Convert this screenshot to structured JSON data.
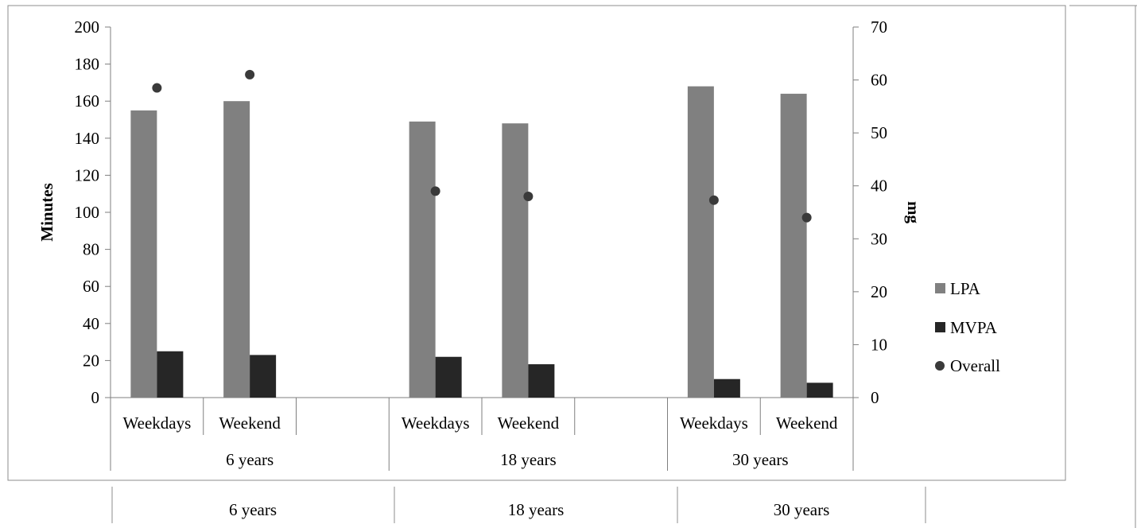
{
  "chart_data": {
    "type": "bar",
    "groups": [
      "6 years",
      "18 years",
      "30 years"
    ],
    "categories": [
      "Weekdays",
      "Weekend",
      "Weekdays",
      "Weekend",
      "Weekdays",
      "Weekend"
    ],
    "category_group": [
      0,
      0,
      1,
      1,
      2,
      2
    ],
    "series": [
      {
        "name": "LPA",
        "kind": "bar",
        "axis": "left",
        "color": "#808080",
        "values": [
          155,
          160,
          149,
          148,
          168,
          164
        ]
      },
      {
        "name": "MVPA",
        "kind": "bar",
        "axis": "left",
        "color": "#262626",
        "values": [
          25,
          23,
          22,
          18,
          10,
          8
        ]
      },
      {
        "name": "Overall",
        "kind": "scatter",
        "axis": "right",
        "color": "#3a3a3a",
        "values": [
          58.5,
          61,
          39,
          38,
          37.3,
          34
        ]
      }
    ],
    "ylabel": "Minutes",
    "y2label": "mg",
    "ylim": [
      0,
      200
    ],
    "y2lim": [
      0,
      70
    ],
    "yticks": [
      0,
      20,
      40,
      60,
      80,
      100,
      120,
      140,
      160,
      180,
      200
    ],
    "y2ticks": [
      0,
      10,
      20,
      30,
      40,
      50,
      60,
      70
    ],
    "legend_position": "right",
    "grid": false
  },
  "bottom_row": {
    "labels": [
      "6 years",
      "18 years",
      "30 years"
    ]
  }
}
